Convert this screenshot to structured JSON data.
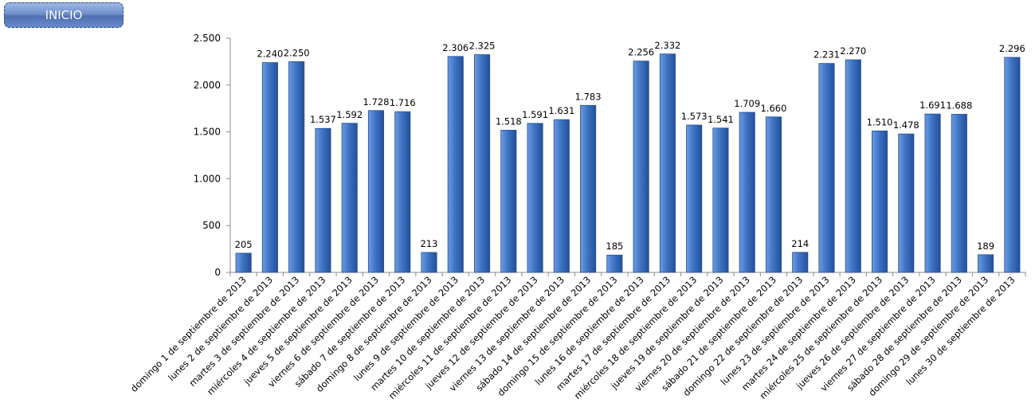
{
  "nav": {
    "inicio_label": "INICIO"
  },
  "chart_data": {
    "type": "bar",
    "categories": [
      "domingo 1 de septiembre de 2013",
      "lunes 2 de septiembre de 2013",
      "martes 3 de septiembre de 2013",
      "miércoles 4 de septiembre de 2013",
      "jueves 5 de septiembre de 2013",
      "viernes 6 de septiembre de 2013",
      "sábado 7 de septiembre de 2013",
      "domingo 8 de septiembre de 2013",
      "lunes 9 de septiembre de 2013",
      "martes 10 de septiembre de 2013",
      "miércoles 11 de septiembre de 2013",
      "jueves 12 de septiembre de 2013",
      "viernes 13 de septiembre de 2013",
      "sábado 14 de septiembre de 2013",
      "domingo 15 de septiembre de 2013",
      "lunes 16 de septiembre de 2013",
      "martes 17 de septiembre de 2013",
      "miércoles 18 de septiembre de 2013",
      "jueves 19 de septiembre de 2013",
      "viernes 20 de septiembre de 2013",
      "sábado 21 de septiembre de 2013",
      "domingo 22 de septiembre de 2013",
      "lunes 23 de septiembre de 2013",
      "martes 24 de septiembre de 2013",
      "miércoles 25 de septiembre de 2013",
      "jueves 26 de septiembre de 2013",
      "viernes 27 de septiembre de 2013",
      "sábado 28 de septiembre de 2013",
      "domingo 29 de septiembre de 2013",
      "lunes 30 de septiembre de 2013"
    ],
    "values": [
      205,
      2240,
      2250,
      1537,
      1592,
      1728,
      1716,
      213,
      2306,
      2325,
      1518,
      1591,
      1631,
      1783,
      185,
      2256,
      2332,
      1573,
      1541,
      1709,
      1660,
      214,
      2231,
      2270,
      1510,
      1478,
      1691,
      1688,
      189,
      2296
    ],
    "data_labels": [
      "205",
      "2.240",
      "2.250",
      "1.537",
      "1.592",
      "1.728",
      "1.716",
      "213",
      "2.306",
      "2.325",
      "1.518",
      "1.591",
      "1.631",
      "1.783",
      "185",
      "2.256",
      "2.332",
      "1.573",
      "1.541",
      "1.709",
      "1.660",
      "214",
      "2.231",
      "2.270",
      "1.510",
      "1.478",
      "1.691",
      "1.688",
      "189",
      "2.296"
    ],
    "y_ticks": [
      0,
      500,
      1000,
      1500,
      2000,
      2500
    ],
    "y_tick_labels": [
      "0",
      "500",
      "1.000",
      "1.500",
      "2.000",
      "2.500"
    ],
    "ylim": [
      0,
      2500
    ],
    "title": "",
    "xlabel": "",
    "ylabel": "",
    "grid": false,
    "legend": "none",
    "bar_color": "#3f74c4",
    "bar_color_light": "#6d9be0",
    "bar_color_dark": "#23509a"
  }
}
